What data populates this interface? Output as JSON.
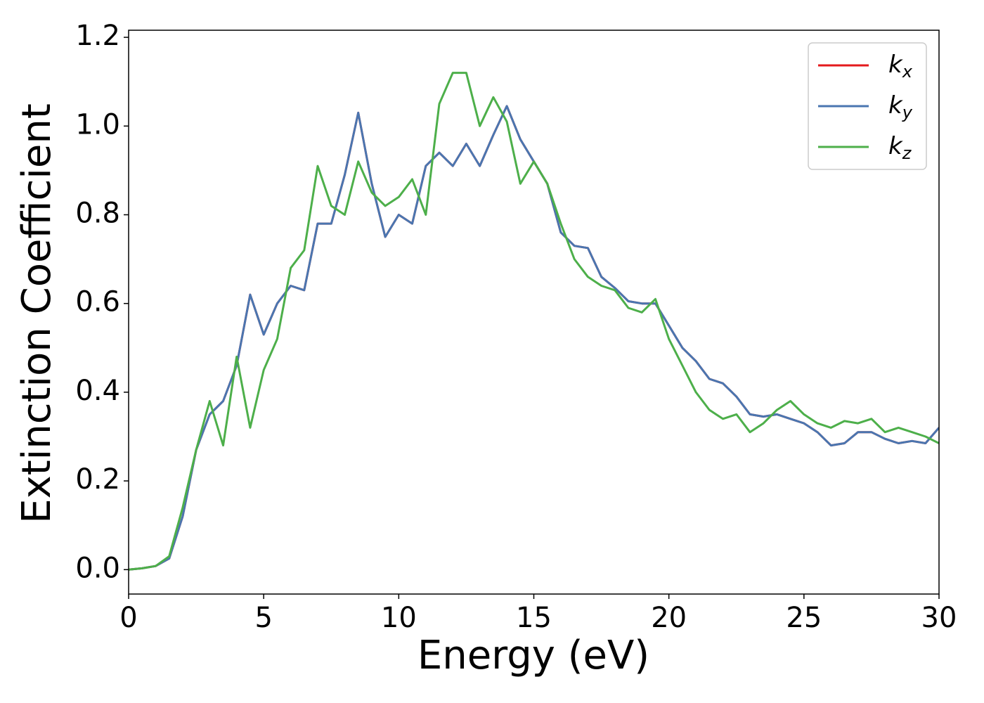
{
  "chart_data": {
    "type": "line",
    "x_label": "Energy (eV)",
    "y_label": "Extinction Coefficient",
    "x": [
      0,
      0.5,
      1,
      1.5,
      2,
      2.5,
      3,
      3.5,
      4,
      4.5,
      5,
      5.5,
      6,
      6.5,
      7,
      7.5,
      8,
      8.5,
      9,
      9.5,
      10,
      10.5,
      11,
      11.5,
      12,
      12.5,
      13,
      13.5,
      14,
      14.5,
      15,
      15.5,
      16,
      16.5,
      17,
      17.5,
      18,
      18.5,
      19,
      19.5,
      20,
      20.5,
      21,
      21.5,
      22,
      22.5,
      23,
      23.5,
      24,
      24.5,
      25,
      25.5,
      26,
      26.5,
      27,
      27.5,
      28,
      28.5,
      29,
      29.5,
      30
    ],
    "series": [
      {
        "name": "kx",
        "color": "#e41a1c",
        "values": [
          0,
          0.003,
          0.008,
          0.025,
          0.12,
          0.27,
          0.35,
          0.38,
          0.46,
          0.62,
          0.53,
          0.6,
          0.64,
          0.63,
          0.78,
          0.78,
          0.89,
          1.03,
          0.87,
          0.75,
          0.8,
          0.78,
          0.91,
          0.94,
          0.91,
          0.96,
          0.91,
          0.98,
          1.045,
          0.97,
          0.92,
          0.87,
          0.76,
          0.73,
          0.725,
          0.66,
          0.635,
          0.605,
          0.6,
          0.6,
          0.55,
          0.5,
          0.47,
          0.43,
          0.42,
          0.39,
          0.35,
          0.345,
          0.35,
          0.34,
          0.33,
          0.31,
          0.28,
          0.285,
          0.31,
          0.31,
          0.295,
          0.285,
          0.29,
          0.285,
          0.32
        ]
      },
      {
        "name": "ky",
        "color": "#4a76b0",
        "values": [
          0,
          0.003,
          0.008,
          0.025,
          0.12,
          0.27,
          0.35,
          0.38,
          0.46,
          0.62,
          0.53,
          0.6,
          0.64,
          0.63,
          0.78,
          0.78,
          0.89,
          1.03,
          0.87,
          0.75,
          0.8,
          0.78,
          0.91,
          0.94,
          0.91,
          0.96,
          0.91,
          0.98,
          1.045,
          0.97,
          0.92,
          0.87,
          0.76,
          0.73,
          0.725,
          0.66,
          0.635,
          0.605,
          0.6,
          0.6,
          0.55,
          0.5,
          0.47,
          0.43,
          0.42,
          0.39,
          0.35,
          0.345,
          0.35,
          0.34,
          0.33,
          0.31,
          0.28,
          0.285,
          0.31,
          0.31,
          0.295,
          0.285,
          0.29,
          0.285,
          0.32
        ]
      },
      {
        "name": "kz",
        "color": "#4daf4a",
        "values": [
          0,
          0.003,
          0.008,
          0.03,
          0.14,
          0.27,
          0.38,
          0.28,
          0.48,
          0.32,
          0.45,
          0.52,
          0.68,
          0.72,
          0.91,
          0.82,
          0.8,
          0.92,
          0.85,
          0.82,
          0.84,
          0.88,
          0.8,
          1.05,
          1.12,
          1.12,
          1.0,
          1.065,
          1.01,
          0.87,
          0.92,
          0.87,
          0.78,
          0.7,
          0.66,
          0.64,
          0.63,
          0.59,
          0.58,
          0.61,
          0.52,
          0.46,
          0.4,
          0.36,
          0.34,
          0.35,
          0.31,
          0.33,
          0.36,
          0.38,
          0.35,
          0.33,
          0.32,
          0.335,
          0.33,
          0.34,
          0.31,
          0.32,
          0.31,
          0.3,
          0.285
        ]
      }
    ],
    "xlim": [
      0,
      30
    ],
    "xticks": [
      0,
      5,
      10,
      15,
      20,
      25,
      30
    ],
    "ylim": [
      -0.055,
      1.216
    ],
    "yticks": [
      {
        "value": 0,
        "label": "0.0"
      },
      0.2,
      0.4,
      0.6,
      0.8,
      {
        "value": 1,
        "label": "1.0"
      },
      1.2
    ],
    "legend": "upper right",
    "grid": false
  }
}
